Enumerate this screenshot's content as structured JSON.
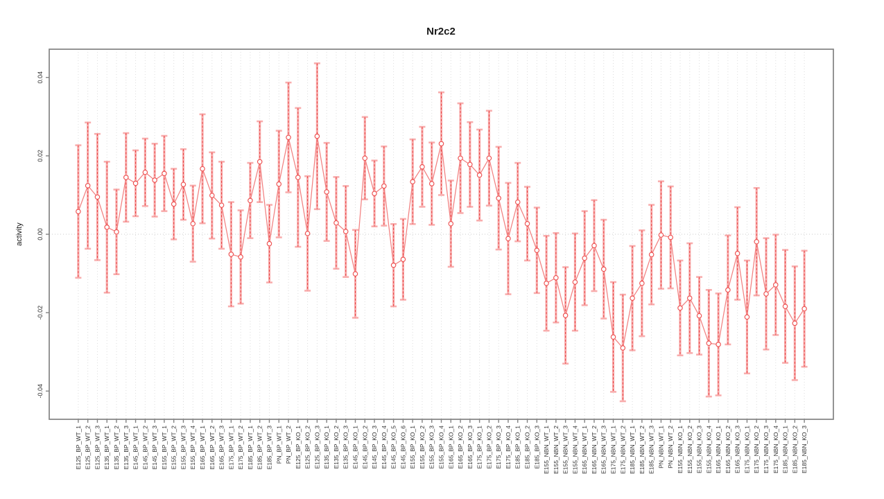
{
  "chart_data": {
    "type": "line",
    "title": "Nr2c2",
    "xlabel": "",
    "ylabel": "activity",
    "legend": "none",
    "grid": "vertical dotted line per category, horizontal dotted line at zero",
    "error_bars": true,
    "point_style": "open-circle",
    "ylim": [
      -0.0472,
      0.0472
    ],
    "y_ticks": [
      -0.04,
      -0.02,
      0,
      0.02,
      0.04
    ],
    "y_tick_labels": [
      "-0.04",
      "-0.02",
      "0.00",
      "0.02",
      "0.04"
    ],
    "colors": {
      "series_line": "#f28080",
      "point_stroke": "#ee5050",
      "error_band": "#f8adad",
      "error_dash": "#e84343",
      "grid_line": "#dcdcdc",
      "zero_line": "#c9c9c9",
      "box": "#828282",
      "tick": "#828282",
      "text": "#303030"
    },
    "categories": [
      "E125_BP_WT_1",
      "E125_BP_WT_2",
      "E125_BP_WT_3",
      "E135_BP_WT_1",
      "E135_BP_WT_2",
      "E135_BP_WT_3",
      "E145_BP_WT_1",
      "E145_BP_WT_2",
      "E145_BP_WT_3",
      "E155_BP_WT_1",
      "E155_BP_WT_2",
      "E155_BP_WT_3",
      "E155_BP_WT_4",
      "E165_BP_WT_1",
      "E165_BP_WT_2",
      "E165_BP_WT_3",
      "E175_BP_WT_1",
      "E175_BP_WT_2",
      "E185_BP_WT_1",
      "E185_BP_WT_2",
      "E185_BP_WT_3",
      "PN_BP_WT_1",
      "PN_BP_WT_2",
      "E125_BP_KO_1",
      "E125_BP_KO_2",
      "E125_BP_KO_3",
      "E135_BP_KO_1",
      "E135_BP_KO_2",
      "E135_BP_KO_3",
      "E145_BP_KO_1",
      "E145_BP_KO_2",
      "E145_BP_KO_3",
      "E145_BP_KO_4",
      "E145_BP_KO_5",
      "E145_BP_KO_6",
      "E155_BP_KO_1",
      "E155_BP_KO_2",
      "E155_BP_KO_3",
      "E155_BP_KO_4",
      "E165_BP_KO_1",
      "E165_BP_KO_2",
      "E165_BP_KO_3",
      "E175_BP_KO_1",
      "E175_BP_KO_2",
      "E175_BP_KO_3",
      "E175_BP_KO_4",
      "E185_BP_KO_1",
      "E185_BP_KO_2",
      "E185_BP_KO_3",
      "E155_NBN_WT_1",
      "E155_NBN_WT_2",
      "E155_NBN_WT_3",
      "E155_NBN_WT_4",
      "E165_NBN_WT_1",
      "E165_NBN_WT_2",
      "E165_NBN_WT_3",
      "E175_NBN_WT_1",
      "E175_NBN_WT_2",
      "E185_NBN_WT_1",
      "E185_NBN_WT_2",
      "E185_NBN_WT_3",
      "PN_NBN_WT_1",
      "PN_NBN_WT_2",
      "E155_NBN_KO_1",
      "E155_NBN_KO_2",
      "E155_NBN_KO_3",
      "E155_NBN_KO_4",
      "E165_NBN_KO_1",
      "E165_NBN_KO_2",
      "E165_NBN_KO_3",
      "E175_NBN_KO_1",
      "E175_NBN_KO_2",
      "E175_NBN_KO_3",
      "E175_NBN_KO_4",
      "E185_NBN_KO_1",
      "E185_NBN_KO_2",
      "E185_NBN_KO_3"
    ],
    "values": [
      0.0058,
      0.0124,
      0.0095,
      0.0018,
      0.0006,
      0.0145,
      0.013,
      0.0158,
      0.0138,
      0.0155,
      0.0077,
      0.0127,
      0.0027,
      0.0167,
      0.0099,
      0.0074,
      -0.0051,
      -0.0058,
      0.0086,
      0.0185,
      -0.0024,
      0.0128,
      0.0247,
      0.0145,
      0.0002,
      0.025,
      0.0108,
      0.0029,
      0.0007,
      -0.0101,
      0.0194,
      0.0104,
      0.0123,
      -0.0079,
      -0.0064,
      0.0134,
      0.0172,
      0.0129,
      0.0231,
      0.0027,
      0.0194,
      0.0178,
      0.0151,
      0.0194,
      0.0092,
      -0.0011,
      0.0082,
      0.0027,
      -0.0041,
      -0.0125,
      -0.0111,
      -0.0207,
      -0.0122,
      -0.0061,
      -0.0029,
      -0.0089,
      -0.0262,
      -0.029,
      -0.0163,
      -0.0125,
      -0.0052,
      -0.0002,
      -0.0008,
      -0.0188,
      -0.0163,
      -0.0208,
      -0.0278,
      -0.0281,
      -0.0142,
      -0.0049,
      -0.0211,
      -0.0019,
      -0.0152,
      -0.0129,
      -0.0184,
      -0.0227,
      -0.019
    ],
    "errors": [
      0.0169,
      0.0161,
      0.0161,
      0.0167,
      0.0108,
      0.0113,
      0.0084,
      0.0086,
      0.0093,
      0.0096,
      0.009,
      0.009,
      0.0097,
      0.0139,
      0.011,
      0.0111,
      0.0133,
      0.0119,
      0.0096,
      0.0103,
      0.0099,
      0.0136,
      0.014,
      0.0177,
      0.0146,
      0.0186,
      0.0125,
      0.0117,
      0.0116,
      0.0112,
      0.0105,
      0.0084,
      0.0101,
      0.0105,
      0.0103,
      0.0108,
      0.0102,
      0.0105,
      0.0131,
      0.011,
      0.014,
      0.0108,
      0.0116,
      0.0121,
      0.0131,
      0.0142,
      0.01,
      0.0094,
      0.0109,
      0.0121,
      0.0114,
      0.0123,
      0.0124,
      0.012,
      0.0116,
      0.0126,
      0.014,
      0.0136,
      0.0133,
      0.0135,
      0.0127,
      0.0137,
      0.013,
      0.0121,
      0.014,
      0.0099,
      0.0136,
      0.013,
      0.0139,
      0.0118,
      0.0144,
      0.0137,
      0.0142,
      0.0128,
      0.0144,
      0.0145,
      0.0148
    ]
  }
}
